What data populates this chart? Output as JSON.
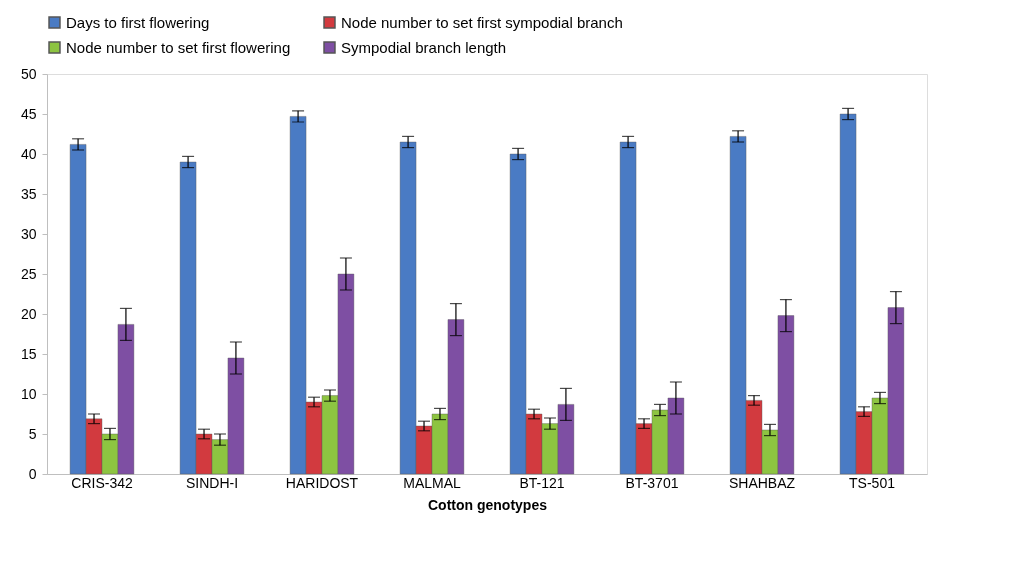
{
  "chart_data": {
    "type": "bar",
    "xlabel": "Cotton genotypes",
    "categories": [
      "CRIS-342",
      "SINDH-I",
      "HARIDOST",
      "MALMAL",
      "BT-121",
      "BT-3701",
      "SHAHBAZ",
      "TS-501"
    ],
    "series": [
      {
        "name": "Days to first flowering",
        "color": "#4a7bc4",
        "values": [
          41.2,
          39.0,
          44.7,
          41.5,
          40.0,
          41.5,
          42.2,
          45.0
        ],
        "errors": [
          0.7,
          0.7,
          0.7,
          0.7,
          0.7,
          0.7,
          0.7,
          0.7
        ]
      },
      {
        "name": "Node number to set first sympodial branch",
        "color": "#d23a3f",
        "values": [
          6.9,
          5.0,
          9.0,
          6.0,
          7.5,
          6.3,
          9.2,
          7.8
        ],
        "errors": [
          0.6,
          0.6,
          0.6,
          0.6,
          0.6,
          0.6,
          0.6,
          0.6
        ]
      },
      {
        "name": "Node number to set first flowering",
        "color": "#8dc441",
        "values": [
          5.0,
          4.3,
          9.8,
          7.5,
          6.3,
          8.0,
          5.5,
          9.5
        ],
        "errors": [
          0.7,
          0.7,
          0.7,
          0.7,
          0.7,
          0.7,
          0.7,
          0.7
        ]
      },
      {
        "name": "Sympodial branch length",
        "color": "#7e4fa3",
        "values": [
          18.7,
          14.5,
          25.0,
          19.3,
          8.7,
          9.5,
          19.8,
          20.8
        ],
        "errors": [
          2.0,
          2.0,
          2.0,
          2.0,
          2.0,
          2.0,
          2.0,
          2.0
        ]
      }
    ],
    "ylim": [
      0,
      50
    ],
    "yticks": [
      0,
      5,
      10,
      15,
      20,
      25,
      30,
      35,
      40,
      45,
      50
    ],
    "grid": false,
    "legend": "top"
  }
}
